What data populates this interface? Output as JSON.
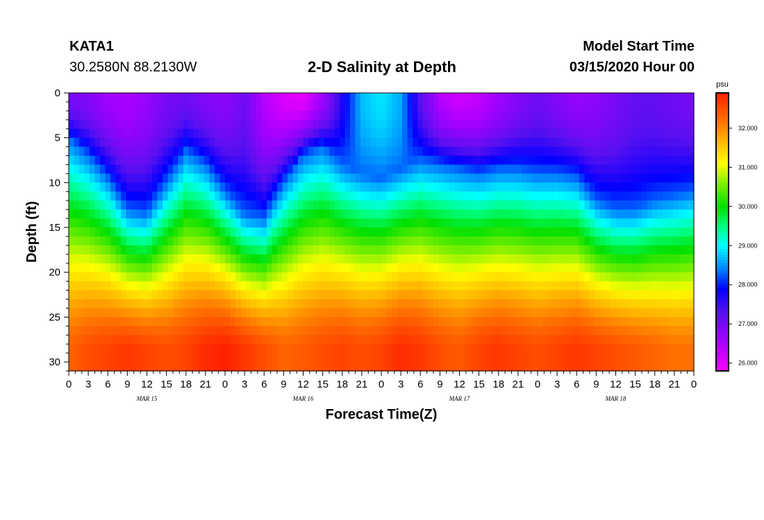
{
  "header": {
    "station": "KATA1",
    "coords": "30.2580N 88.2130W",
    "title": "2-D Salinity at Depth",
    "model_start_label": "Model Start Time",
    "model_start_value": "03/15/2020 Hour 00"
  },
  "chart_data": {
    "type": "heatmap",
    "title": "2-D Salinity at Depth",
    "xlabel": "Forecast Time(Z)",
    "ylabel": "Depth (ft)",
    "x_ticks": [
      "0",
      "3",
      "6",
      "9",
      "12",
      "15",
      "18",
      "21",
      "0",
      "3",
      "6",
      "9",
      "12",
      "15",
      "18",
      "21",
      "0",
      "3",
      "6",
      "9",
      "12",
      "15",
      "18",
      "21",
      "0",
      "3",
      "6",
      "9",
      "12",
      "15",
      "18",
      "21",
      "0"
    ],
    "x_range_hours": [
      0,
      96
    ],
    "date_labels": [
      {
        "text": "MAR 15",
        "hour": 12
      },
      {
        "text": "MAR 16",
        "hour": 36
      },
      {
        "text": "MAR 17",
        "hour": 60
      },
      {
        "text": "MAR 18",
        "hour": 84
      }
    ],
    "y_ticks": [
      0,
      5,
      10,
      15,
      20,
      25,
      30
    ],
    "y_range_ft": [
      0,
      31
    ],
    "colorbar": {
      "units": "psu",
      "range": [
        25.8,
        32.9
      ],
      "tick_values": [
        26.0,
        27.0,
        28.0,
        29.0,
        30.0,
        31.0,
        32.0
      ],
      "tick_labels": [
        "26.000",
        "27.000",
        "28.000",
        "29.000",
        "30.000",
        "31.000",
        "32.000"
      ],
      "stops": [
        {
          "v": 25.8,
          "c": "#ff00ff"
        },
        {
          "v": 26.5,
          "c": "#aa00ff"
        },
        {
          "v": 27.3,
          "c": "#5a10f0"
        },
        {
          "v": 27.9,
          "c": "#0000ff"
        },
        {
          "v": 28.4,
          "c": "#0080ff"
        },
        {
          "v": 29.0,
          "c": "#00ffff"
        },
        {
          "v": 29.5,
          "c": "#00ff80"
        },
        {
          "v": 30.0,
          "c": "#00e000"
        },
        {
          "v": 30.6,
          "c": "#80f000"
        },
        {
          "v": 31.1,
          "c": "#ffff00"
        },
        {
          "v": 31.6,
          "c": "#ffc000"
        },
        {
          "v": 32.2,
          "c": "#ff7000"
        },
        {
          "v": 32.9,
          "c": "#ff2000"
        }
      ]
    },
    "depths_ft": [
      0.5,
      1.5,
      2.5,
      3.5,
      4.5,
      5.5,
      6.5,
      7.5,
      8.5,
      9.5,
      10.5,
      11.5,
      12.5,
      13.5,
      14.5,
      15.5,
      16.5,
      17.5,
      18.5,
      19.5,
      20.5,
      21.5,
      22.5,
      23.5,
      24.5,
      25.5,
      26.5,
      27.5,
      28.5,
      29.5,
      30.5
    ],
    "hours": [
      0,
      3,
      6,
      9,
      12,
      15,
      18,
      21,
      24,
      27,
      30,
      33,
      36,
      39,
      42,
      45,
      48,
      51,
      54,
      57,
      60,
      63,
      66,
      69,
      72,
      75,
      78,
      81,
      84,
      87,
      90,
      93,
      96
    ],
    "surface_salinity": [
      27.0,
      26.9,
      26.6,
      26.5,
      26.7,
      27.0,
      27.1,
      26.9,
      26.8,
      27.1,
      26.4,
      26.1,
      26.0,
      26.6,
      27.7,
      28.7,
      28.9,
      28.6,
      27.3,
      26.4,
      26.2,
      26.3,
      26.6,
      26.9,
      27.1,
      26.9,
      26.7,
      26.8,
      27.0,
      27.2,
      27.2,
      27.1,
      27.0
    ],
    "halocline_depth_ft": [
      9.0,
      11.0,
      13.5,
      17.0,
      17.5,
      14.0,
      10.5,
      12.0,
      15.0,
      17.5,
      18.0,
      14.0,
      11.0,
      10.0,
      12.0,
      13.0,
      13.5,
      12.5,
      11.5,
      12.0,
      12.5,
      13.0,
      12.5,
      12.5,
      13.0,
      13.0,
      13.5,
      16.0,
      17.0,
      17.0,
      16.0,
      15.5,
      15.0
    ],
    "bottom_salinity": [
      32.3,
      32.5,
      32.6,
      32.7,
      32.6,
      32.5,
      32.6,
      32.8,
      32.9,
      32.7,
      32.5,
      32.3,
      32.4,
      32.5,
      32.6,
      32.5,
      32.6,
      32.8,
      32.7,
      32.5,
      32.4,
      32.6,
      32.7,
      32.6,
      32.5,
      32.6,
      32.7,
      32.6,
      32.5,
      32.4,
      32.3,
      32.2,
      32.2
    ]
  }
}
